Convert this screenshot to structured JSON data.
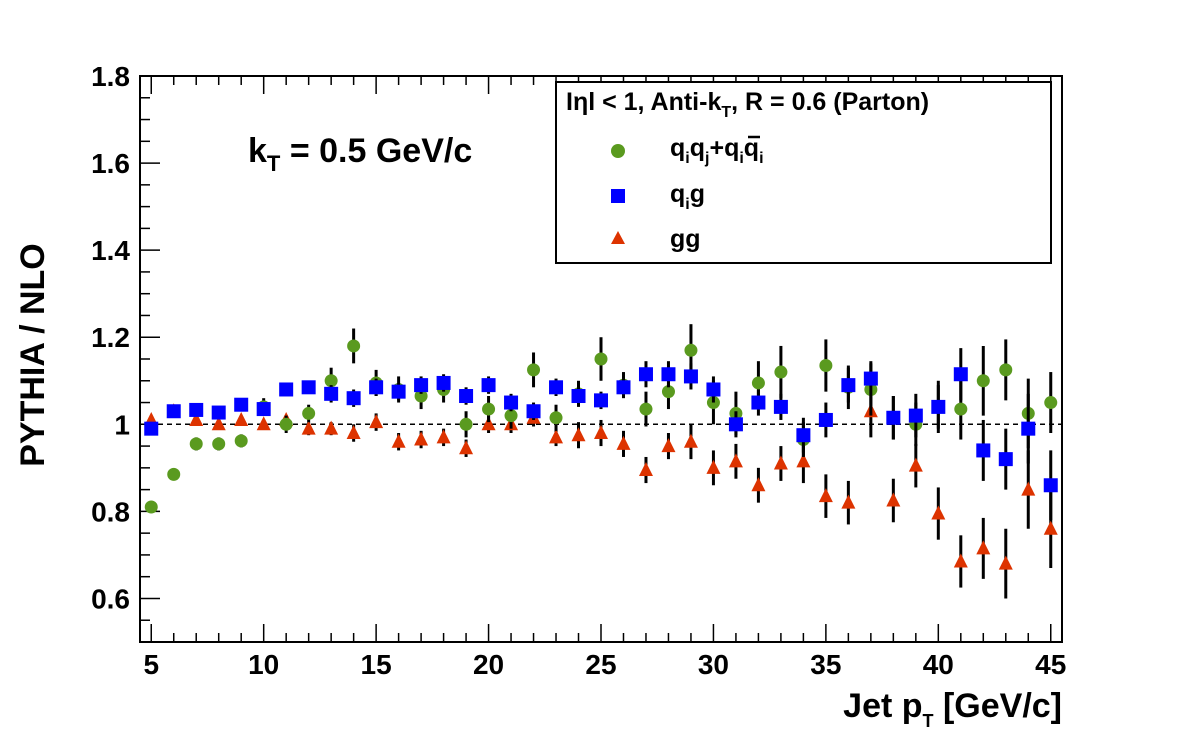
{
  "chart_data": {
    "type": "scatter",
    "xlabel": "Jet p",
    "xlabel_sub": "T",
    "xlabel_unit": " [GeV/c]",
    "ylabel": "PYTHIA / NLO",
    "xlim": [
      4.5,
      45.5
    ],
    "ylim": [
      0.5,
      1.8
    ],
    "x_ticks": [
      5,
      10,
      15,
      20,
      25,
      30,
      35,
      40,
      45
    ],
    "y_ticks": [
      0.6,
      0.8,
      1,
      1.2,
      1.4,
      1.6,
      1.8
    ],
    "y_tick_labels": [
      "0.6",
      "0.8",
      "1",
      "1.2",
      "1.4",
      "1.6",
      "1.8"
    ],
    "reference_line": 1.0,
    "annotation": {
      "main": "k",
      "sub": "T",
      "rest": " = 0.5 GeV/c"
    },
    "legend": {
      "placement": "top-right",
      "header": {
        "a": "Iηl < 1, Anti-k",
        "sub": "T",
        "b": ", R = 0.6 (Parton)"
      }
    },
    "series": [
      {
        "name": "qiqj+qiq̄i",
        "marker": "circle",
        "color": "#5a9a1f",
        "x": [
          5,
          6,
          7,
          8,
          9,
          10,
          11,
          12,
          13,
          14,
          15,
          16,
          17,
          18,
          19,
          20,
          21,
          22,
          23,
          24,
          25,
          26,
          27,
          28,
          29,
          30,
          31,
          32,
          33,
          34,
          35,
          36,
          37,
          38,
          39,
          40,
          41,
          42,
          43,
          44,
          45
        ],
        "y": [
          0.81,
          0.885,
          0.955,
          0.955,
          0.962,
          1.04,
          1.0,
          1.025,
          1.1,
          1.18,
          1.095,
          1.08,
          1.065,
          1.08,
          1.0,
          1.035,
          1.02,
          1.125,
          1.015,
          1.07,
          1.15,
          1.09,
          1.035,
          1.075,
          1.17,
          1.05,
          1.025,
          1.095,
          1.12,
          0.965,
          1.135,
          1.085,
          1.08,
          1.015,
          1.0,
          1.04,
          1.035,
          1.1,
          1.125,
          1.025,
          1.05
        ],
        "err": [
          0.005,
          0.007,
          0.015,
          0.015,
          0.015,
          0.02,
          0.02,
          0.02,
          0.03,
          0.04,
          0.03,
          0.03,
          0.03,
          0.03,
          0.03,
          0.03,
          0.03,
          0.04,
          0.03,
          0.03,
          0.05,
          0.03,
          0.04,
          0.04,
          0.06,
          0.05,
          0.05,
          0.05,
          0.06,
          0.04,
          0.06,
          0.05,
          0.06,
          0.05,
          0.05,
          0.06,
          0.07,
          0.08,
          0.07,
          0.08,
          0.07
        ]
      },
      {
        "name": "qig",
        "marker": "square",
        "color": "#0000ff",
        "x": [
          5,
          6,
          7,
          8,
          9,
          10,
          11,
          12,
          13,
          14,
          15,
          16,
          17,
          18,
          19,
          20,
          21,
          22,
          23,
          24,
          25,
          26,
          27,
          28,
          29,
          30,
          31,
          32,
          33,
          34,
          35,
          36,
          37,
          38,
          39,
          40,
          41,
          42,
          43,
          44,
          45
        ],
        "y": [
          0.99,
          1.03,
          1.033,
          1.027,
          1.045,
          1.035,
          1.08,
          1.085,
          1.07,
          1.06,
          1.085,
          1.075,
          1.09,
          1.095,
          1.065,
          1.09,
          1.05,
          1.03,
          1.085,
          1.065,
          1.055,
          1.085,
          1.115,
          1.115,
          1.11,
          1.08,
          1.0,
          1.05,
          1.04,
          0.975,
          1.01,
          1.09,
          1.105,
          1.015,
          1.02,
          1.04,
          1.115,
          0.94,
          0.92,
          0.99,
          0.86
        ],
        "err": [
          0.005,
          0.008,
          0.01,
          0.01,
          0.01,
          0.015,
          0.015,
          0.015,
          0.02,
          0.02,
          0.02,
          0.02,
          0.02,
          0.02,
          0.02,
          0.02,
          0.02,
          0.02,
          0.02,
          0.02,
          0.02,
          0.02,
          0.03,
          0.03,
          0.03,
          0.03,
          0.03,
          0.03,
          0.03,
          0.04,
          0.04,
          0.04,
          0.04,
          0.05,
          0.05,
          0.05,
          0.06,
          0.07,
          0.07,
          0.08,
          0.08
        ]
      },
      {
        "name": "gg",
        "marker": "triangle",
        "color": "#dd3300",
        "x": [
          5,
          6,
          7,
          8,
          9,
          10,
          11,
          12,
          13,
          14,
          15,
          16,
          17,
          18,
          19,
          20,
          21,
          22,
          23,
          24,
          25,
          26,
          27,
          28,
          29,
          30,
          31,
          32,
          33,
          34,
          35,
          36,
          37,
          38,
          39,
          40,
          41,
          42,
          43,
          44,
          45
        ],
        "y": [
          1.01,
          1.03,
          1.01,
          1.0,
          1.01,
          1.0,
          1.01,
          0.99,
          0.99,
          0.98,
          1.005,
          0.96,
          0.965,
          0.97,
          0.945,
          1.0,
          1.0,
          1.015,
          0.97,
          0.975,
          0.98,
          0.955,
          0.895,
          0.95,
          0.96,
          0.9,
          0.915,
          0.86,
          0.91,
          0.915,
          0.835,
          0.82,
          1.03,
          0.825,
          0.905,
          0.795,
          0.685,
          0.715,
          0.68,
          0.85,
          0.76
        ],
        "err": [
          0.005,
          0.006,
          0.01,
          0.01,
          0.01,
          0.01,
          0.01,
          0.015,
          0.015,
          0.02,
          0.02,
          0.02,
          0.02,
          0.02,
          0.02,
          0.02,
          0.02,
          0.02,
          0.02,
          0.03,
          0.03,
          0.03,
          0.03,
          0.03,
          0.04,
          0.04,
          0.04,
          0.04,
          0.04,
          0.05,
          0.05,
          0.05,
          0.06,
          0.05,
          0.05,
          0.06,
          0.06,
          0.07,
          0.08,
          0.09,
          0.09
        ]
      }
    ]
  }
}
